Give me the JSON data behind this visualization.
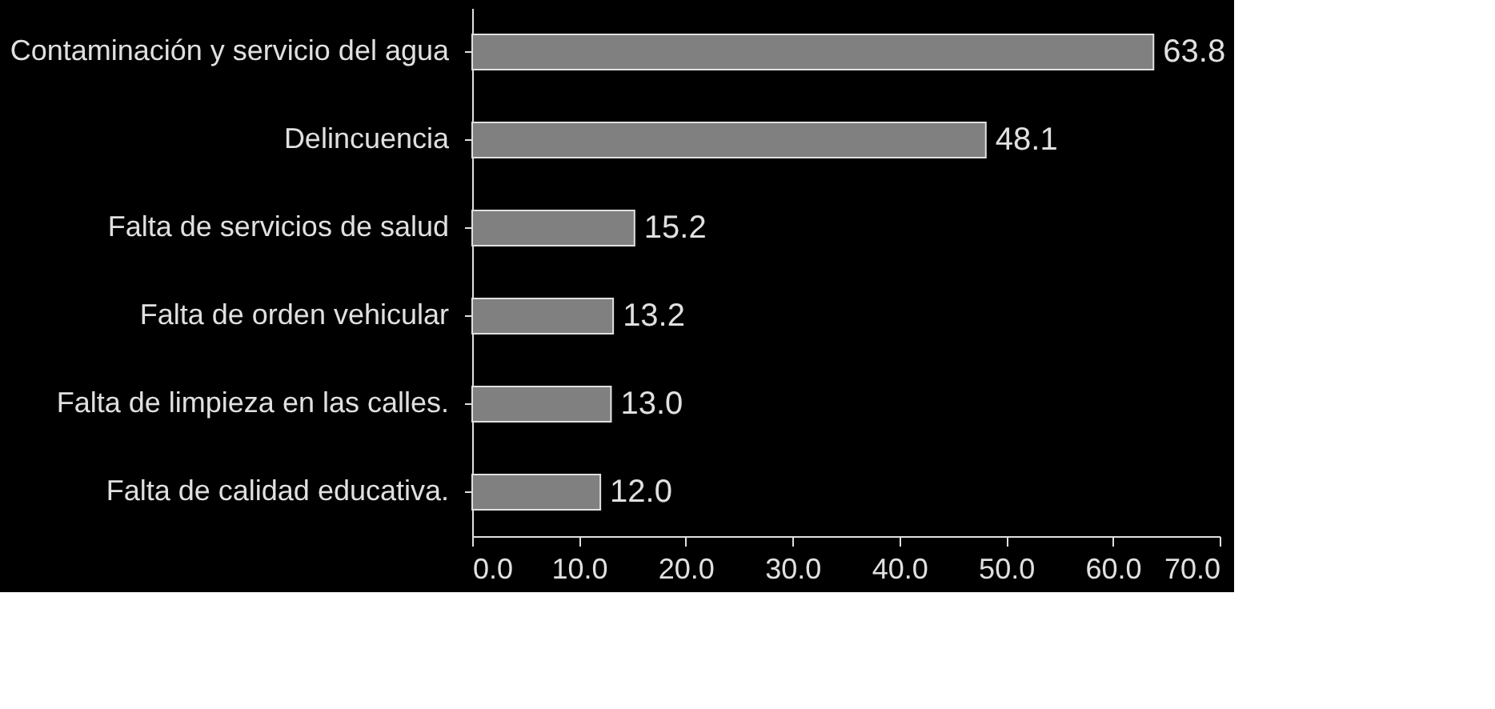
{
  "chart_data": {
    "type": "bar",
    "orientation": "horizontal",
    "categories": [
      "Contaminación y servicio del agua",
      "Delincuencia",
      "Falta de servicios de salud",
      "Falta de orden vehicular",
      "Falta de limpieza en las calles.",
      "Falta de calidad educativa."
    ],
    "values": [
      63.8,
      48.1,
      15.2,
      13.2,
      13.0,
      12.0
    ],
    "value_labels": [
      "63.8",
      "48.1",
      "15.2",
      "13.2",
      "13.0",
      "12.0"
    ],
    "color": "#808080",
    "xlim": [
      0,
      70
    ],
    "xticks": [
      {
        "value": 0,
        "label": "0.0"
      },
      {
        "value": 10,
        "label": "10.0"
      },
      {
        "value": 20,
        "label": "20.0"
      },
      {
        "value": 30,
        "label": "30.0"
      },
      {
        "value": 40,
        "label": "40.0"
      },
      {
        "value": 50,
        "label": "50.0"
      },
      {
        "value": 60,
        "label": "60.0"
      },
      {
        "value": 70,
        "label": "70.0"
      }
    ],
    "grid": false
  }
}
